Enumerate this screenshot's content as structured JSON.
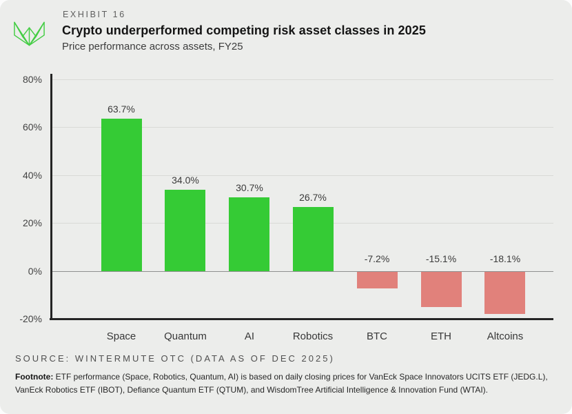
{
  "header": {
    "exhibit_label": "EXHIBIT 16",
    "title": "Crypto underperformed competing risk asset classes in 2025",
    "subtitle": "Price performance across assets, FY25"
  },
  "chart_data": {
    "type": "bar",
    "title": "Price performance across assets, FY25",
    "categories": [
      "Space",
      "Quantum",
      "AI",
      "Robotics",
      "BTC",
      "ETH",
      "Altcoins"
    ],
    "values": [
      63.7,
      34.0,
      30.7,
      26.7,
      -7.2,
      -15.1,
      -18.1
    ],
    "value_labels": [
      "63.7%",
      "34.0%",
      "30.7%",
      "26.7%",
      "-7.2%",
      "-15.1%",
      "-18.1%"
    ],
    "ylim": [
      -20,
      80
    ],
    "yticks": [
      {
        "value": 80,
        "label": "80%"
      },
      {
        "value": 60,
        "label": "60%"
      },
      {
        "value": 40,
        "label": "40%"
      },
      {
        "value": 20,
        "label": "20%"
      },
      {
        "value": 0,
        "label": "0%"
      },
      {
        "value": -20,
        "label": "-20%"
      }
    ],
    "grid": true,
    "legend": false,
    "colors": {
      "positive": "#35cb35",
      "negative": "#e1817b",
      "gridline": "#d9dad6",
      "zero_line": "#8f8f8f",
      "axis": "#242424",
      "logo_green": "#44cd44",
      "card_background": "#ecedeb"
    }
  },
  "footer": {
    "source": "SOURCE: WINTERMUTE OTC (DATA AS OF DEC 2025)",
    "footnote_label": "Footnote:",
    "footnote_text": " ETF performance (Space, Robotics, Quantum, AI) is based on daily closing prices for VanEck Space Innovators UCITS ETF (JEDG.L), VanEck Robotics ETF (IBOT), Defiance Quantum ETF (QTUM), and WisdomTree Artificial Intelligence & Innovation Fund (WTAI)."
  }
}
